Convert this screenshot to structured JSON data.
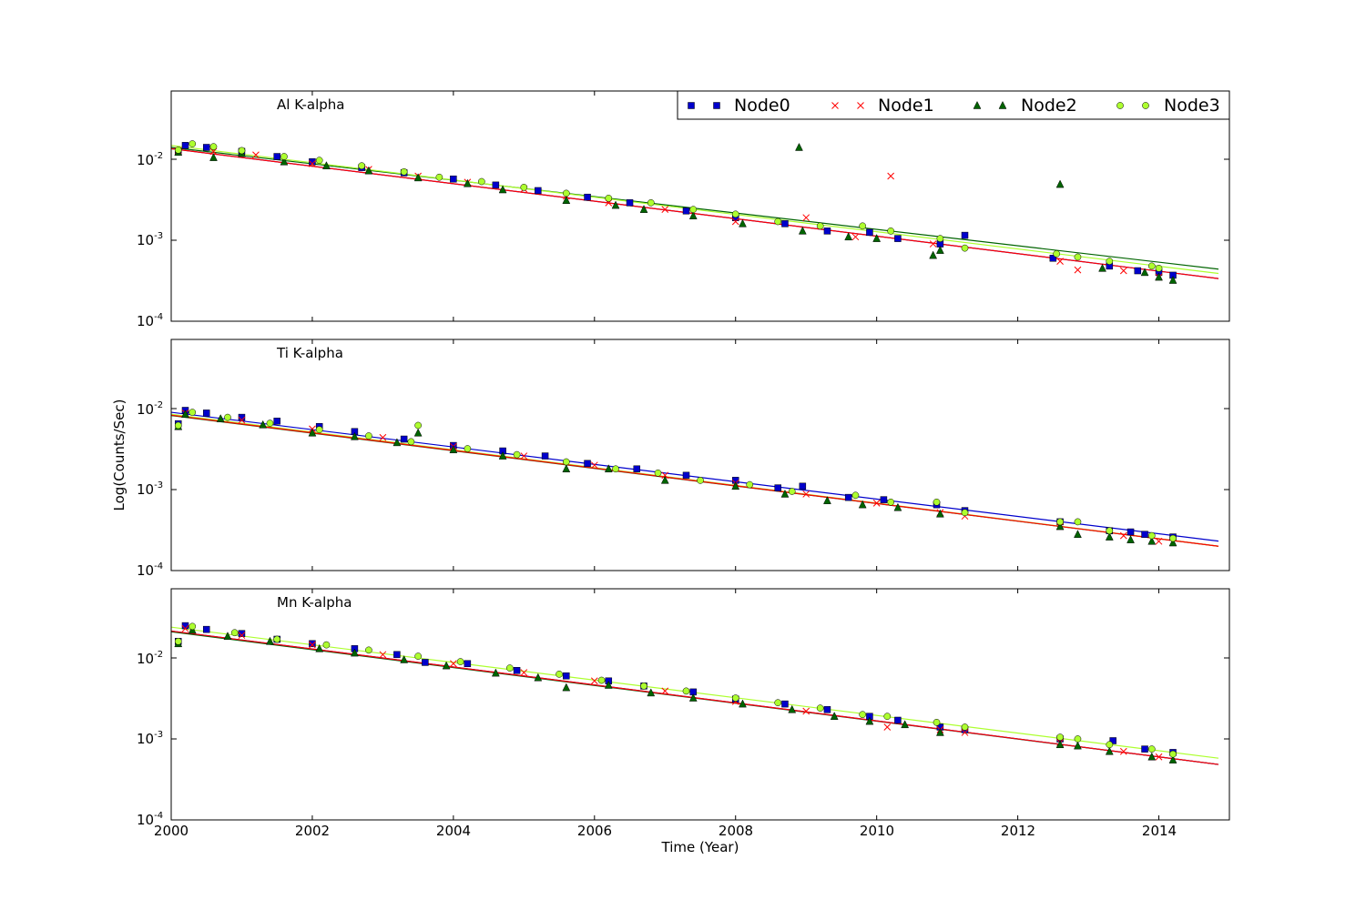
{
  "figure": {
    "xlabel": "Time (Year)",
    "ylabel": "Log(Counts/Sec)",
    "x_ticks": [
      "2000",
      "2002",
      "2004",
      "2006",
      "2008",
      "2010",
      "2012",
      "2014"
    ],
    "y_tick_bases": [
      "10",
      "10",
      "10"
    ],
    "y_tick_exps": [
      "-4",
      "-3",
      "-2"
    ]
  },
  "legend": {
    "placement": "top-right of first panel",
    "entries": [
      {
        "label": "Node0",
        "marker": "square",
        "color": "#0000cc"
      },
      {
        "label": "Node1",
        "marker": "x",
        "color": "#ff0000"
      },
      {
        "label": "Node2",
        "marker": "triangle",
        "color": "#006400"
      },
      {
        "label": "Node3",
        "marker": "circle",
        "color": "#adff2f"
      }
    ]
  },
  "chart_data": [
    {
      "type": "scatter",
      "title": "Al K-alpha",
      "xlabel": "",
      "ylabel": "",
      "xlim": [
        2000,
        2015
      ],
      "ylim": [
        0.0001,
        0.07
      ],
      "yscale": "log",
      "fits": {
        "Node0": {
          "y2000": 0.0135,
          "y2015": 0.00032,
          "color": "#0000cc"
        },
        "Node1": {
          "y2000": 0.0135,
          "y2015": 0.00032,
          "color": "#ff0000"
        },
        "Node2": {
          "y2000": 0.014,
          "y2015": 0.00042,
          "color": "#006400"
        },
        "Node3": {
          "y2000": 0.0148,
          "y2015": 0.00037,
          "color": "#adff2f"
        }
      },
      "series": [
        {
          "name": "Node0",
          "x": [
            2000.1,
            2000.2,
            2000.5,
            2001.0,
            2001.5,
            2002.0,
            2002.7,
            2003.3,
            2004.0,
            2004.6,
            2005.2,
            2005.9,
            2006.5,
            2007.3,
            2008.0,
            2008.7,
            2009.3,
            2009.9,
            2010.3,
            2010.9,
            2011.25,
            2012.5,
            2013.3,
            2013.7,
            2014.0,
            2014.2
          ],
          "y": [
            0.0125,
            0.0148,
            0.014,
            0.0125,
            0.0108,
            0.0093,
            0.0079,
            0.0068,
            0.0057,
            0.0048,
            0.0041,
            0.0034,
            0.0029,
            0.0023,
            0.0019,
            0.0016,
            0.0013,
            0.00125,
            0.00105,
            0.0009,
            0.00115,
            0.0006,
            0.00048,
            0.00042,
            0.0004,
            0.00037
          ]
        },
        {
          "name": "Node1",
          "x": [
            2000.1,
            2000.6,
            2001.2,
            2002.0,
            2002.8,
            2003.5,
            2004.2,
            2005.0,
            2005.6,
            2006.2,
            2007.0,
            2008.0,
            2009.0,
            2009.7,
            2010.2,
            2010.8,
            2012.6,
            2012.85,
            2013.5,
            2014.0
          ],
          "y": [
            0.0128,
            0.0125,
            0.0113,
            0.0088,
            0.0075,
            0.0062,
            0.0052,
            0.0043,
            0.0035,
            0.0029,
            0.0024,
            0.0017,
            0.0019,
            0.0011,
            0.0062,
            0.0009,
            0.00055,
            0.00043,
            0.00042,
            0.00035
          ]
        },
        {
          "name": "Node2",
          "x": [
            2000.1,
            2000.6,
            2001.0,
            2001.6,
            2002.2,
            2002.8,
            2003.5,
            2004.2,
            2004.7,
            2005.6,
            2006.3,
            2006.7,
            2007.4,
            2008.1,
            2008.9,
            2008.95,
            2009.6,
            2010.0,
            2010.8,
            2010.9,
            2012.6,
            2013.2,
            2013.8,
            2014.0,
            2014.2
          ],
          "y": [
            0.0122,
            0.0105,
            0.0118,
            0.0093,
            0.0083,
            0.0072,
            0.0059,
            0.005,
            0.0042,
            0.0031,
            0.0027,
            0.0024,
            0.002,
            0.0016,
            0.014,
            0.0013,
            0.0011,
            0.00105,
            0.00065,
            0.00075,
            0.0049,
            0.00045,
            0.0004,
            0.00035,
            0.00032
          ]
        },
        {
          "name": "Node3",
          "x": [
            2000.1,
            2000.3,
            2000.6,
            2001.0,
            2001.6,
            2002.1,
            2002.7,
            2003.3,
            2003.8,
            2004.4,
            2005.0,
            2005.6,
            2006.2,
            2006.8,
            2007.4,
            2008.0,
            2008.6,
            2009.2,
            2009.8,
            2010.2,
            2010.9,
            2011.25,
            2012.55,
            2012.85,
            2013.3,
            2013.9,
            2014.0
          ],
          "y": [
            0.013,
            0.0155,
            0.0143,
            0.0128,
            0.0108,
            0.0097,
            0.0083,
            0.007,
            0.006,
            0.0053,
            0.0045,
            0.0038,
            0.0033,
            0.0029,
            0.0024,
            0.0021,
            0.0017,
            0.0015,
            0.0015,
            0.0013,
            0.00105,
            0.0008,
            0.00068,
            0.00062,
            0.00055,
            0.00048,
            0.00045
          ]
        }
      ]
    },
    {
      "type": "scatter",
      "title": "Ti K-alpha",
      "xlabel": "",
      "ylabel": "Log(Counts/Sec)",
      "xlim": [
        2000,
        2015
      ],
      "ylim": [
        0.0001,
        0.07
      ],
      "yscale": "log",
      "fits": {
        "Node0": {
          "y2000": 0.009,
          "y2015": 0.00022,
          "color": "#0000cc"
        },
        "Node1": {
          "y2000": 0.0083,
          "y2015": 0.00019,
          "color": "#ff0000"
        },
        "Node2": {
          "y2000": 0.0082,
          "y2015": 0.00019,
          "color": "#006400"
        },
        "Node3": {
          "y2000": 0.0085,
          "y2015": 0.00019,
          "color": "#adff2f"
        }
      },
      "series": [
        {
          "name": "Node0",
          "x": [
            2000.1,
            2000.2,
            2000.5,
            2001.0,
            2001.5,
            2002.1,
            2002.6,
            2003.3,
            2004.0,
            2004.7,
            2005.3,
            2005.9,
            2006.6,
            2007.3,
            2008.0,
            2008.6,
            2008.95,
            2009.6,
            2010.1,
            2010.85,
            2011.25,
            2012.6,
            2013.3,
            2013.6,
            2013.8,
            2014.2
          ],
          "y": [
            0.0065,
            0.0095,
            0.0088,
            0.0078,
            0.007,
            0.006,
            0.0052,
            0.0042,
            0.0035,
            0.003,
            0.0026,
            0.0021,
            0.0018,
            0.0015,
            0.0013,
            0.00105,
            0.0011,
            0.0008,
            0.00075,
            0.00065,
            0.00055,
            0.0004,
            0.00031,
            0.0003,
            0.00028,
            0.00026
          ]
        },
        {
          "name": "Node1",
          "x": [
            2000.2,
            2001.0,
            2002.0,
            2003.0,
            2004.0,
            2005.0,
            2006.0,
            2007.0,
            2008.0,
            2009.0,
            2010.0,
            2010.9,
            2011.25,
            2012.6,
            2013.5,
            2014.0
          ],
          "y": [
            0.0088,
            0.0072,
            0.0056,
            0.0044,
            0.0034,
            0.0026,
            0.002,
            0.0015,
            0.0012,
            0.00088,
            0.00068,
            0.00052,
            0.00047,
            0.00035,
            0.00027,
            0.00023
          ]
        },
        {
          "name": "Node2",
          "x": [
            2000.1,
            2000.2,
            2000.7,
            2001.3,
            2002.0,
            2002.6,
            2003.2,
            2003.5,
            2004.0,
            2004.7,
            2005.6,
            2006.2,
            2007.0,
            2008.0,
            2008.7,
            2009.3,
            2009.8,
            2010.3,
            2010.9,
            2012.6,
            2012.85,
            2013.3,
            2013.6,
            2013.9,
            2014.2
          ],
          "y": [
            0.006,
            0.0085,
            0.0075,
            0.0063,
            0.005,
            0.0045,
            0.0038,
            0.005,
            0.0031,
            0.0026,
            0.0018,
            0.0018,
            0.0013,
            0.0011,
            0.00088,
            0.00073,
            0.00065,
            0.0006,
            0.0005,
            0.00035,
            0.00028,
            0.00026,
            0.00024,
            0.00023,
            0.00022
          ]
        },
        {
          "name": "Node3",
          "x": [
            2000.1,
            2000.3,
            2000.8,
            2001.4,
            2002.1,
            2002.8,
            2003.4,
            2003.5,
            2004.2,
            2004.9,
            2005.6,
            2006.3,
            2006.9,
            2007.5,
            2008.2,
            2008.8,
            2009.7,
            2010.2,
            2010.85,
            2011.25,
            2012.6,
            2012.85,
            2013.3,
            2013.9,
            2014.2
          ],
          "y": [
            0.0062,
            0.009,
            0.0078,
            0.0066,
            0.0055,
            0.0046,
            0.0039,
            0.0062,
            0.0032,
            0.0027,
            0.0022,
            0.0018,
            0.0016,
            0.0013,
            0.00115,
            0.00095,
            0.00085,
            0.0007,
            0.0007,
            0.00052,
            0.0004,
            0.0004,
            0.00031,
            0.00027,
            0.00025
          ]
        }
      ]
    },
    {
      "type": "scatter",
      "title": "Mn K-alpha",
      "xlabel": "Time (Year)",
      "ylabel": "",
      "xlim": [
        2000,
        2015
      ],
      "ylim": [
        0.0001,
        0.07
      ],
      "yscale": "log",
      "fits": {
        "Node0": {
          "y2000": 0.0215,
          "y2015": 0.00046,
          "color": "#0000cc"
        },
        "Node1": {
          "y2000": 0.0215,
          "y2015": 0.00046,
          "color": "#ff0000"
        },
        "Node2": {
          "y2000": 0.021,
          "y2015": 0.00046,
          "color": "#006400"
        },
        "Node3": {
          "y2000": 0.024,
          "y2015": 0.00055,
          "color": "#adff2f"
        }
      },
      "series": [
        {
          "name": "Node0",
          "x": [
            2000.1,
            2000.2,
            2000.5,
            2001.0,
            2001.5,
            2002.0,
            2002.6,
            2003.2,
            2003.6,
            2004.2,
            2004.9,
            2005.6,
            2006.2,
            2006.7,
            2007.4,
            2008.0,
            2008.7,
            2009.3,
            2009.9,
            2010.3,
            2010.9,
            2011.25,
            2012.6,
            2013.35,
            2013.8,
            2014.2
          ],
          "y": [
            0.016,
            0.025,
            0.0225,
            0.02,
            0.017,
            0.015,
            0.013,
            0.011,
            0.0088,
            0.0085,
            0.007,
            0.006,
            0.0052,
            0.0045,
            0.0038,
            0.0031,
            0.0027,
            0.0023,
            0.0019,
            0.0017,
            0.0014,
            0.0013,
            0.001,
            0.00095,
            0.00075,
            0.00068
          ]
        },
        {
          "name": "Node1",
          "x": [
            2000.2,
            2001.0,
            2002.0,
            2003.0,
            2004.0,
            2005.0,
            2006.0,
            2007.0,
            2008.0,
            2009.0,
            2010.15,
            2010.9,
            2011.25,
            2012.6,
            2013.5,
            2014.0
          ],
          "y": [
            0.023,
            0.019,
            0.0145,
            0.011,
            0.0085,
            0.0066,
            0.0052,
            0.0039,
            0.0029,
            0.0022,
            0.0014,
            0.0013,
            0.0012,
            0.0009,
            0.0007,
            0.0006
          ]
        },
        {
          "name": "Node2",
          "x": [
            2000.1,
            2000.3,
            2000.8,
            2001.4,
            2002.1,
            2002.6,
            2003.3,
            2003.9,
            2004.6,
            2005.2,
            2005.6,
            2006.2,
            2006.8,
            2007.4,
            2008.1,
            2008.8,
            2009.4,
            2009.9,
            2010.4,
            2010.9,
            2012.6,
            2012.85,
            2013.3,
            2013.9,
            2014.2
          ],
          "y": [
            0.015,
            0.022,
            0.0185,
            0.016,
            0.013,
            0.0115,
            0.0095,
            0.008,
            0.0065,
            0.0057,
            0.0043,
            0.0046,
            0.0037,
            0.0032,
            0.0027,
            0.0023,
            0.0019,
            0.00165,
            0.0015,
            0.0012,
            0.00085,
            0.00082,
            0.0007,
            0.0006,
            0.00055
          ]
        },
        {
          "name": "Node3",
          "x": [
            2000.1,
            2000.3,
            2000.9,
            2001.5,
            2002.2,
            2002.8,
            2003.5,
            2004.1,
            2004.8,
            2005.5,
            2006.1,
            2006.7,
            2007.3,
            2008.0,
            2008.6,
            2009.2,
            2009.8,
            2010.15,
            2010.85,
            2011.25,
            2012.6,
            2012.85,
            2013.3,
            2013.9,
            2014.2
          ],
          "y": [
            0.016,
            0.0245,
            0.0205,
            0.017,
            0.0145,
            0.0125,
            0.0105,
            0.009,
            0.0075,
            0.0063,
            0.0053,
            0.0045,
            0.0039,
            0.0032,
            0.0028,
            0.0024,
            0.002,
            0.0019,
            0.0016,
            0.0014,
            0.00105,
            0.001,
            0.00085,
            0.00075,
            0.00065
          ]
        }
      ]
    }
  ]
}
